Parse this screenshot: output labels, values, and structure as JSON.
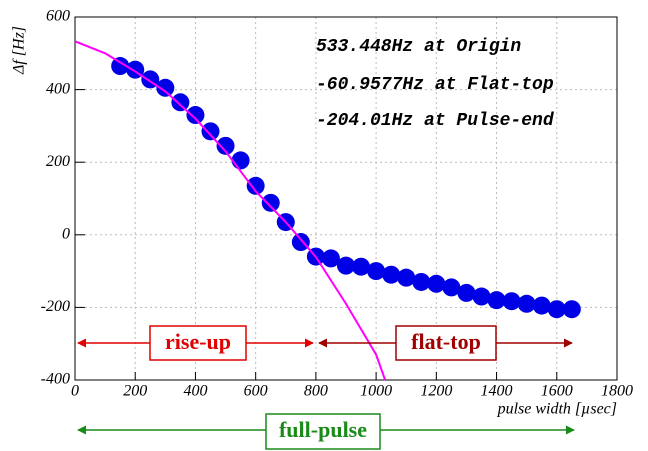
{
  "chart_data": {
    "type": "scatter",
    "x_label": "pulse width [µsec]",
    "y_label": "Δf [Hz]",
    "annotations": [
      "533.448Hz at Origin",
      "-60.9577Hz at Flat-top",
      "-204.01Hz at Pulse-end"
    ],
    "span_labels": [
      "rise-up",
      "flat-top",
      "full-pulse"
    ],
    "xlim": [
      0,
      1800
    ],
    "xticks": [
      0,
      200,
      400,
      600,
      800,
      1000,
      1200,
      1400,
      1600,
      1800
    ],
    "ylim": [
      -400,
      600
    ],
    "yticks": [
      -400,
      -200,
      0,
      200,
      400,
      600
    ],
    "grid": true,
    "series": [
      {
        "type": "scatter",
        "color": "#0000e6",
        "x": [
          150,
          200,
          250,
          300,
          350,
          400,
          450,
          500,
          550,
          600,
          650,
          700,
          750,
          800,
          850,
          900,
          950,
          1000,
          1050,
          1100,
          1150,
          1200,
          1250,
          1300,
          1350,
          1400,
          1450,
          1500,
          1550,
          1600,
          1650
        ],
        "values": [
          465,
          455,
          428,
          405,
          365,
          330,
          285,
          245,
          205,
          135,
          88,
          35,
          -20,
          -60,
          -65,
          -85,
          -88,
          -100,
          -110,
          -118,
          -130,
          -135,
          -145,
          -160,
          -170,
          -180,
          -183,
          -190,
          -195,
          -205,
          -205
        ]
      },
      {
        "type": "line",
        "color": "#ff00ff",
        "x": [
          0,
          100,
          200,
          300,
          400,
          500,
          600,
          700,
          800,
          900,
          1000,
          1030
        ],
        "values": [
          533,
          500,
          450,
          395,
          320,
          230,
          120,
          35,
          -61,
          -190,
          -330,
          -400
        ]
      }
    ]
  }
}
